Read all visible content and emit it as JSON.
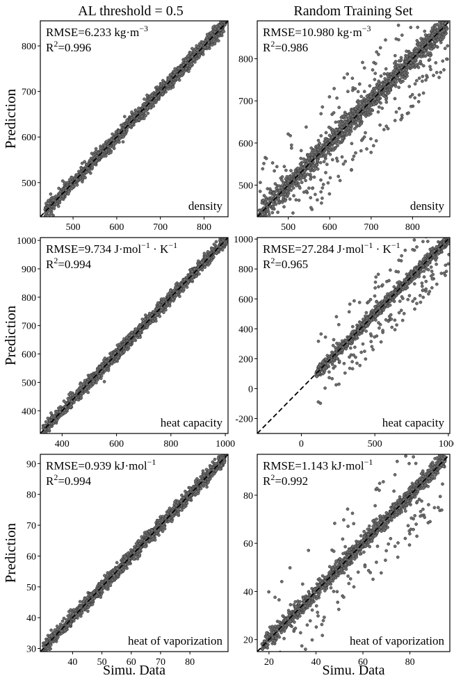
{
  "column_titles": [
    "AL threshold = 0.5",
    "Random Training Set"
  ],
  "colors": {
    "point_fill": "#6e6e6e",
    "point_edge": "#2f2f2f",
    "diagonal": "#000000",
    "axes": "#000000"
  },
  "chart_data": [
    {
      "type": "scatter",
      "xlabel": "",
      "ylabel": "Prediction",
      "xlim": [
        425,
        855
      ],
      "ylim": [
        425,
        855
      ],
      "xticks": [
        500,
        600,
        700,
        800
      ],
      "yticks": [
        500,
        600,
        700,
        800
      ],
      "annotations": {
        "rmse": "RMSE=6.233 kg·m",
        "rmse_sup": "−3",
        "r2": "R",
        "r2_sup": "2",
        "r2_val": "=0.996",
        "property": "density"
      },
      "series": [
        {
          "range": [
            435,
            850
          ],
          "spread": 8,
          "count": 1600,
          "outlier_frac": 0.0
        }
      ]
    },
    {
      "type": "scatter",
      "xlabel": "",
      "ylabel": "",
      "xlim": [
        425,
        890
      ],
      "ylim": [
        425,
        890
      ],
      "xticks": [
        500,
        600,
        700,
        800
      ],
      "yticks": [
        500,
        600,
        700,
        800
      ],
      "annotations": {
        "rmse": "RMSE=10.980 kg·m",
        "rmse_sup": "−3",
        "r2": "R",
        "r2_sup": "2",
        "r2_val": "=0.986",
        "property": "density"
      },
      "series": [
        {
          "range": [
            430,
            885
          ],
          "spread": 14,
          "count": 1700,
          "outlier_frac": 0.12
        }
      ]
    },
    {
      "type": "scatter",
      "xlabel": "",
      "ylabel": "Prediction",
      "xlim": [
        320,
        1010
      ],
      "ylim": [
        320,
        1010
      ],
      "xticks": [
        400,
        600,
        800,
        1000
      ],
      "yticks": [
        400,
        500,
        600,
        700,
        800,
        900,
        1000
      ],
      "annotations": {
        "rmse": "RMSE=9.734 J·mol",
        "rmse_sup": "−1",
        "rmse_mid": " · K",
        "rmse_sup2": "−1",
        "r2": "R",
        "r2_sup": "2",
        "r2_val": "=0.994",
        "property": "heat capacity"
      },
      "series": [
        {
          "range": [
            330,
            1005
          ],
          "spread": 11,
          "count": 1600,
          "outlier_frac": 0.0
        }
      ]
    },
    {
      "type": "scatter",
      "xlabel": "",
      "ylabel": "",
      "xlim": [
        -300,
        1010
      ],
      "ylim": [
        -300,
        1010
      ],
      "xticks": [
        0,
        500,
        1000
      ],
      "yticks": [
        -200,
        0,
        200,
        400,
        600,
        800,
        1000
      ],
      "annotations": {
        "rmse": "RMSE=27.284 J·mol",
        "rmse_sup": "−1",
        "rmse_mid": " · K",
        "rmse_sup2": "−1",
        "r2": "R",
        "r2_sup": "2",
        "r2_val": "=0.965",
        "property": "heat capacity"
      },
      "series": [
        {
          "range": [
            100,
            1005
          ],
          "spread": 18,
          "count": 1500,
          "outlier_frac": 0.1
        }
      ]
    },
    {
      "type": "scatter",
      "xlabel": "Simu. Data",
      "ylabel": "Prediction",
      "xlim": [
        29,
        93
      ],
      "ylim": [
        29,
        93
      ],
      "xticks": [
        40,
        50,
        60,
        70,
        80
      ],
      "yticks": [
        30,
        40,
        50,
        60,
        70,
        80,
        90
      ],
      "annotations": {
        "rmse": "RMSE=0.939 kJ·mol",
        "rmse_sup": "−1",
        "r2": "R",
        "r2_sup": "2",
        "r2_val": "=0.994",
        "property": "heat of vaporization"
      },
      "series": [
        {
          "range": [
            30,
            92
          ],
          "spread": 1.1,
          "count": 1600,
          "outlier_frac": 0.0
        }
      ]
    },
    {
      "type": "scatter",
      "xlabel": "Simu. Data",
      "ylabel": "",
      "xlim": [
        15,
        97
      ],
      "ylim": [
        15,
        97
      ],
      "xticks": [
        20,
        40,
        60,
        80
      ],
      "yticks": [
        20,
        40,
        60,
        80
      ],
      "annotations": {
        "rmse": "RMSE=1.143 kJ·mol",
        "rmse_sup": "−1",
        "r2": "R",
        "r2_sup": "2",
        "r2_val": "=0.992",
        "property": "heat of vaporization"
      },
      "series": [
        {
          "range": [
            17,
            95
          ],
          "spread": 1.6,
          "count": 1600,
          "outlier_frac": 0.08
        }
      ]
    }
  ]
}
